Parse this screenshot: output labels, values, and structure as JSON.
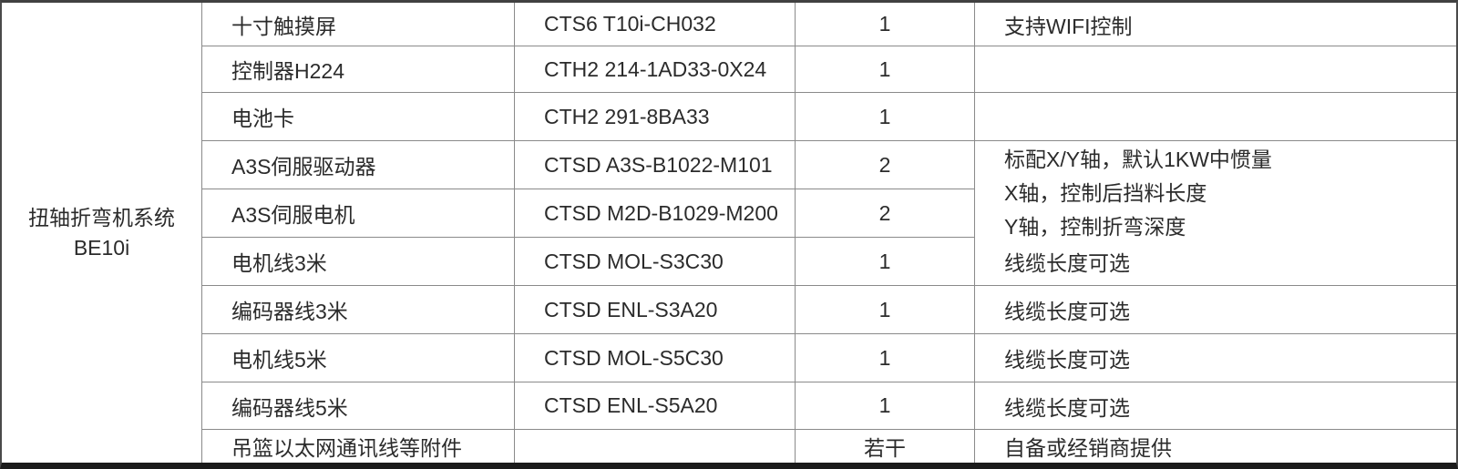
{
  "table": {
    "system": {
      "name_line1": "扭轴折弯机系统",
      "name_line2": "BE10i"
    },
    "rows": [
      {
        "component": "十寸触摸屏",
        "model": "CTS6 T10i-CH032",
        "qty": "1",
        "note": "支持WIFI控制"
      },
      {
        "component": "控制器H224",
        "model": "CTH2 214-1AD33-0X24",
        "qty": "1",
        "note": ""
      },
      {
        "component": "电池卡",
        "model": "CTH2 291-8BA33",
        "qty": "1",
        "note": ""
      },
      {
        "component": "A3S伺服驱动器",
        "model": "CTSD A3S-B1022-M101",
        "qty": "2",
        "note": ""
      },
      {
        "component": "A3S伺服电机",
        "model": "CTSD M2D-B1029-M200",
        "qty": "2",
        "note": ""
      },
      {
        "component": "电机线3米",
        "model": "CTSD MOL-S3C30",
        "qty": "1",
        "note": "线缆长度可选"
      },
      {
        "component": "编码器线3米",
        "model": "CTSD ENL-S3A20",
        "qty": "1",
        "note": "线缆长度可选"
      },
      {
        "component": "电机线5米",
        "model": "CTSD MOL-S5C30",
        "qty": "1",
        "note": "线缆长度可选"
      },
      {
        "component": "编码器线5米",
        "model": "CTSD ENL-S5A20",
        "qty": "1",
        "note": "线缆长度可选"
      },
      {
        "component": "吊篮以太网通讯线等附件",
        "model": "",
        "qty": "若干",
        "note": "自备或经销商提供"
      }
    ],
    "merged_note": {
      "lines": [
        "标配X/Y轴，默认1KW中惯量",
        "X轴，控制后挡料长度",
        "Y轴，控制折弯深度"
      ]
    }
  },
  "colors": {
    "text": "#2b2b2b",
    "grid_line": "#8a8a8a",
    "outer_border": "#414141",
    "bottom_border": "#1a1a1a",
    "background": "#ffffff"
  }
}
